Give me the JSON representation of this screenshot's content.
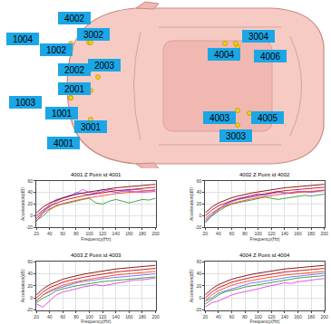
{
  "diagram": {
    "labels": [
      "4002",
      "1004",
      "1002",
      "3002",
      "2002",
      "2003",
      "2001",
      "1003",
      "1001",
      "3001",
      "4001",
      "3004",
      "4004",
      "4006",
      "4003",
      "4005",
      "3003"
    ]
  },
  "chart_data": [
    {
      "type": "line",
      "title": "4001 Z Point id 4001",
      "x_label": "Frequency(Hz)",
      "y_label": "Acceleration(dB)",
      "x": [
        20,
        30,
        40,
        50,
        60,
        70,
        80,
        90,
        100,
        110,
        120,
        130,
        140,
        150,
        160,
        170,
        180,
        190,
        200
      ],
      "xlim": [
        20,
        200
      ],
      "xticks": [
        20,
        40,
        60,
        80,
        100,
        120,
        140,
        160,
        180,
        200
      ],
      "ylim": [
        -20,
        60
      ],
      "yticks": [
        -20,
        0,
        20,
        40,
        60
      ],
      "grid": true,
      "series": [
        {
          "color": "#e040e0",
          "values": [
            -10,
            5,
            20,
            28,
            30,
            35,
            38,
            45,
            40,
            38,
            42,
            45,
            44,
            43,
            42,
            40,
            40,
            41,
            42
          ]
        },
        {
          "color": "#6a6aff",
          "values": [
            -5,
            8,
            15,
            25,
            30,
            33,
            40,
            38,
            36,
            40,
            45,
            42,
            40,
            42,
            44,
            45,
            44,
            43,
            45
          ]
        },
        {
          "color": "#339933",
          "values": [
            -8,
            0,
            10,
            18,
            20,
            22,
            25,
            28,
            30,
            22,
            20,
            25,
            28,
            25,
            22,
            25,
            28,
            27,
            30
          ]
        },
        {
          "color": "#ff4020",
          "values": [
            -5,
            5,
            12,
            17,
            21,
            24,
            27,
            29,
            31,
            33,
            35,
            36,
            38,
            39,
            40,
            41,
            42,
            43,
            44
          ]
        },
        {
          "color": "#d00000",
          "values": [
            0,
            10,
            17,
            22,
            26,
            29,
            32,
            34,
            36,
            38,
            40,
            41,
            43,
            44,
            45,
            46,
            47,
            48,
            49
          ]
        },
        {
          "color": "#800000",
          "values": [
            5,
            15,
            22,
            27,
            31,
            34,
            37,
            39,
            41,
            43,
            45,
            46,
            48,
            49,
            50,
            51,
            52,
            53,
            54
          ]
        }
      ]
    },
    {
      "type": "line",
      "title": "4002 Z Point id 4002",
      "x_label": "Frequency(Hz)",
      "y_label": "Acceleration(dB)",
      "x": [
        20,
        30,
        40,
        50,
        60,
        70,
        80,
        90,
        100,
        110,
        120,
        130,
        140,
        150,
        160,
        170,
        180,
        190,
        200
      ],
      "xlim": [
        20,
        200
      ],
      "xticks": [
        20,
        40,
        60,
        80,
        100,
        120,
        140,
        160,
        180,
        200
      ],
      "ylim": [
        -20,
        60
      ],
      "yticks": [
        -20,
        0,
        20,
        40,
        60
      ],
      "grid": true,
      "series": [
        {
          "color": "#e040e0",
          "values": [
            -10,
            0,
            10,
            20,
            25,
            30,
            32,
            35,
            38,
            35,
            40,
            42,
            38,
            40,
            42,
            41,
            40,
            42,
            43
          ]
        },
        {
          "color": "#6a6aff",
          "values": [
            -8,
            2,
            12,
            18,
            24,
            28,
            30,
            32,
            35,
            36,
            38,
            40,
            40,
            38,
            41,
            42,
            41,
            43,
            44
          ]
        },
        {
          "color": "#339933",
          "values": [
            -12,
            0,
            8,
            15,
            20,
            23,
            25,
            27,
            30,
            32,
            30,
            28,
            30,
            32,
            33,
            35,
            34,
            36,
            37
          ]
        },
        {
          "color": "#ff4020",
          "values": [
            -5,
            5,
            12,
            17,
            21,
            24,
            27,
            29,
            31,
            33,
            35,
            36,
            38,
            39,
            40,
            41,
            42,
            43,
            44
          ]
        },
        {
          "color": "#d00000",
          "values": [
            0,
            10,
            17,
            22,
            26,
            29,
            32,
            34,
            36,
            38,
            40,
            41,
            43,
            44,
            45,
            46,
            47,
            48,
            49
          ]
        },
        {
          "color": "#800000",
          "values": [
            5,
            15,
            22,
            27,
            31,
            34,
            37,
            39,
            41,
            43,
            45,
            46,
            48,
            49,
            50,
            51,
            52,
            53,
            54
          ]
        }
      ]
    },
    {
      "type": "line",
      "title": "4003 Z Point id 4003",
      "x_label": "Frequency(Hz)",
      "y_label": "Acceleration(dB)",
      "x": [
        20,
        30,
        40,
        50,
        60,
        70,
        80,
        90,
        100,
        110,
        120,
        130,
        140,
        150,
        160,
        170,
        180,
        190,
        200
      ],
      "xlim": [
        20,
        200
      ],
      "xticks": [
        20,
        40,
        60,
        80,
        100,
        120,
        140,
        160,
        180,
        200
      ],
      "ylim": [
        -20,
        60
      ],
      "yticks": [
        -20,
        0,
        20,
        40,
        60
      ],
      "grid": true,
      "series": [
        {
          "color": "#e040e0",
          "values": [
            -10,
            -15,
            -5,
            5,
            10,
            12,
            15,
            18,
            20,
            22,
            20,
            22,
            25,
            27,
            28,
            30,
            30,
            32,
            33
          ]
        },
        {
          "color": "#6a6aff",
          "values": [
            -5,
            5,
            10,
            15,
            18,
            22,
            25,
            27,
            28,
            30,
            32,
            33,
            34,
            35,
            36,
            37,
            38,
            38,
            40
          ]
        },
        {
          "color": "#339933",
          "values": [
            -8,
            0,
            5,
            12,
            15,
            18,
            20,
            22,
            24,
            25,
            27,
            28,
            29,
            30,
            31,
            32,
            33,
            34,
            35
          ]
        },
        {
          "color": "#ff4020",
          "values": [
            -5,
            5,
            12,
            17,
            21,
            24,
            27,
            29,
            31,
            33,
            35,
            36,
            38,
            39,
            40,
            41,
            42,
            43,
            44
          ]
        },
        {
          "color": "#d00000",
          "values": [
            0,
            10,
            17,
            22,
            26,
            29,
            32,
            34,
            36,
            38,
            40,
            41,
            43,
            44,
            45,
            46,
            47,
            48,
            49
          ]
        },
        {
          "color": "#800000",
          "values": [
            5,
            15,
            22,
            27,
            31,
            34,
            37,
            39,
            41,
            43,
            45,
            46,
            48,
            49,
            50,
            51,
            52,
            53,
            54
          ]
        }
      ]
    },
    {
      "type": "line",
      "title": "4004 Z Point id 4004",
      "x_label": "Frequency(Hz)",
      "y_label": "Acceleration(dB)",
      "x": [
        20,
        30,
        40,
        50,
        60,
        70,
        80,
        90,
        100,
        110,
        120,
        130,
        140,
        150,
        160,
        170,
        180,
        190,
        200
      ],
      "xlim": [
        20,
        200
      ],
      "xticks": [
        20,
        40,
        60,
        80,
        100,
        120,
        140,
        160,
        180,
        200
      ],
      "ylim": [
        -20,
        60
      ],
      "yticks": [
        -20,
        0,
        20,
        40,
        60
      ],
      "grid": true,
      "series": [
        {
          "color": "#e040e0",
          "values": [
            -15,
            -8,
            -5,
            0,
            5,
            8,
            10,
            12,
            15,
            18,
            20,
            22,
            25,
            24,
            27,
            28,
            30,
            31,
            32
          ]
        },
        {
          "color": "#6a6aff",
          "values": [
            -5,
            0,
            8,
            12,
            15,
            18,
            22,
            25,
            26,
            28,
            30,
            32,
            33,
            35,
            36,
            37,
            38,
            40,
            41
          ]
        },
        {
          "color": "#339933",
          "values": [
            -10,
            -2,
            5,
            10,
            12,
            15,
            18,
            20,
            22,
            24,
            26,
            28,
            30,
            31,
            33,
            34,
            35,
            36,
            37
          ]
        },
        {
          "color": "#ff4020",
          "values": [
            -5,
            5,
            12,
            17,
            21,
            24,
            27,
            29,
            31,
            33,
            35,
            36,
            38,
            39,
            40,
            41,
            42,
            43,
            44
          ]
        },
        {
          "color": "#d00000",
          "values": [
            0,
            10,
            17,
            22,
            26,
            29,
            32,
            34,
            36,
            38,
            40,
            41,
            43,
            44,
            45,
            46,
            47,
            48,
            49
          ]
        },
        {
          "color": "#800000",
          "values": [
            5,
            15,
            22,
            27,
            31,
            34,
            37,
            39,
            41,
            43,
            45,
            46,
            48,
            49,
            50,
            51,
            52,
            53,
            54
          ]
        }
      ]
    }
  ]
}
